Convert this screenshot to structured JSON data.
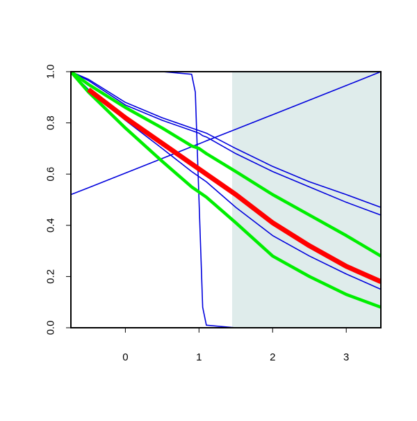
{
  "chart_data": {
    "type": "line",
    "x": [
      -0.74,
      -0.5,
      0,
      0.5,
      0.9,
      0.95,
      1,
      1.05,
      1.1,
      1.5,
      2,
      2.5,
      3,
      3.47
    ],
    "xlim": [
      -0.74,
      3.47
    ],
    "ylim": [
      0,
      1
    ],
    "xticks": [
      0,
      1,
      2,
      3
    ],
    "yticks": [
      {
        "value": 0,
        "label": "0.0"
      },
      {
        "value": 0.2,
        "label": "0.2"
      },
      {
        "value": 0.4,
        "label": "0.4"
      },
      {
        "value": 0.6,
        "label": "0.6"
      },
      {
        "value": 0.8,
        "label": "0.8"
      },
      {
        "value": 1,
        "label": "1.0"
      }
    ],
    "shaded_span": [
      1.45,
      3.47
    ],
    "shade_color": "#dfeceb",
    "series": [
      {
        "color": "#0000dd",
        "width": 1.6,
        "values": [
          0.52,
          0.547,
          0.604,
          0.661,
          0.707,
          0.713,
          0.718,
          0.724,
          0.73,
          0.775,
          0.832,
          0.889,
          0.946,
          1.0
        ]
      },
      {
        "color": "#0000dd",
        "width": 1.6,
        "values": [
          1,
          1,
          1,
          1,
          0.99,
          0.92,
          0.5,
          0.08,
          0.01,
          0,
          0,
          0,
          0,
          0
        ]
      },
      {
        "color": "#0000dd",
        "width": 1.6,
        "values": [
          1,
          0.97,
          0.88,
          0.82,
          0.78,
          0.775,
          0.77,
          0.765,
          0.76,
          0.7,
          0.63,
          0.57,
          0.52,
          0.47
        ]
      },
      {
        "color": "#0000dd",
        "width": 1.6,
        "values": [
          1,
          0.965,
          0.87,
          0.81,
          0.77,
          0.765,
          0.76,
          0.75,
          0.745,
          0.68,
          0.61,
          0.55,
          0.49,
          0.44
        ]
      },
      {
        "color": "#0000dd",
        "width": 1.6,
        "values": [
          1,
          0.93,
          0.81,
          0.7,
          0.61,
          0.6,
          0.59,
          0.58,
          0.57,
          0.47,
          0.36,
          0.28,
          0.21,
          0.15
        ]
      },
      {
        "color": "#00ee00",
        "width": 4.5,
        "values": [
          1,
          0.95,
          0.86,
          0.78,
          0.71,
          0.705,
          0.7,
          0.69,
          0.68,
          0.61,
          0.52,
          0.44,
          0.36,
          0.28
        ]
      },
      {
        "color": "#00ee00",
        "width": 4.5,
        "values": [
          1,
          0.92,
          0.78,
          0.65,
          0.55,
          0.54,
          0.53,
          0.52,
          0.51,
          0.41,
          0.28,
          0.2,
          0.13,
          0.08
        ]
      },
      {
        "color": "#ff0000",
        "width": 7,
        "values": [
          null,
          0.93,
          0.82,
          0.72,
          0.64,
          0.63,
          0.62,
          0.61,
          0.6,
          0.52,
          0.41,
          0.32,
          0.24,
          0.18
        ]
      }
    ]
  }
}
